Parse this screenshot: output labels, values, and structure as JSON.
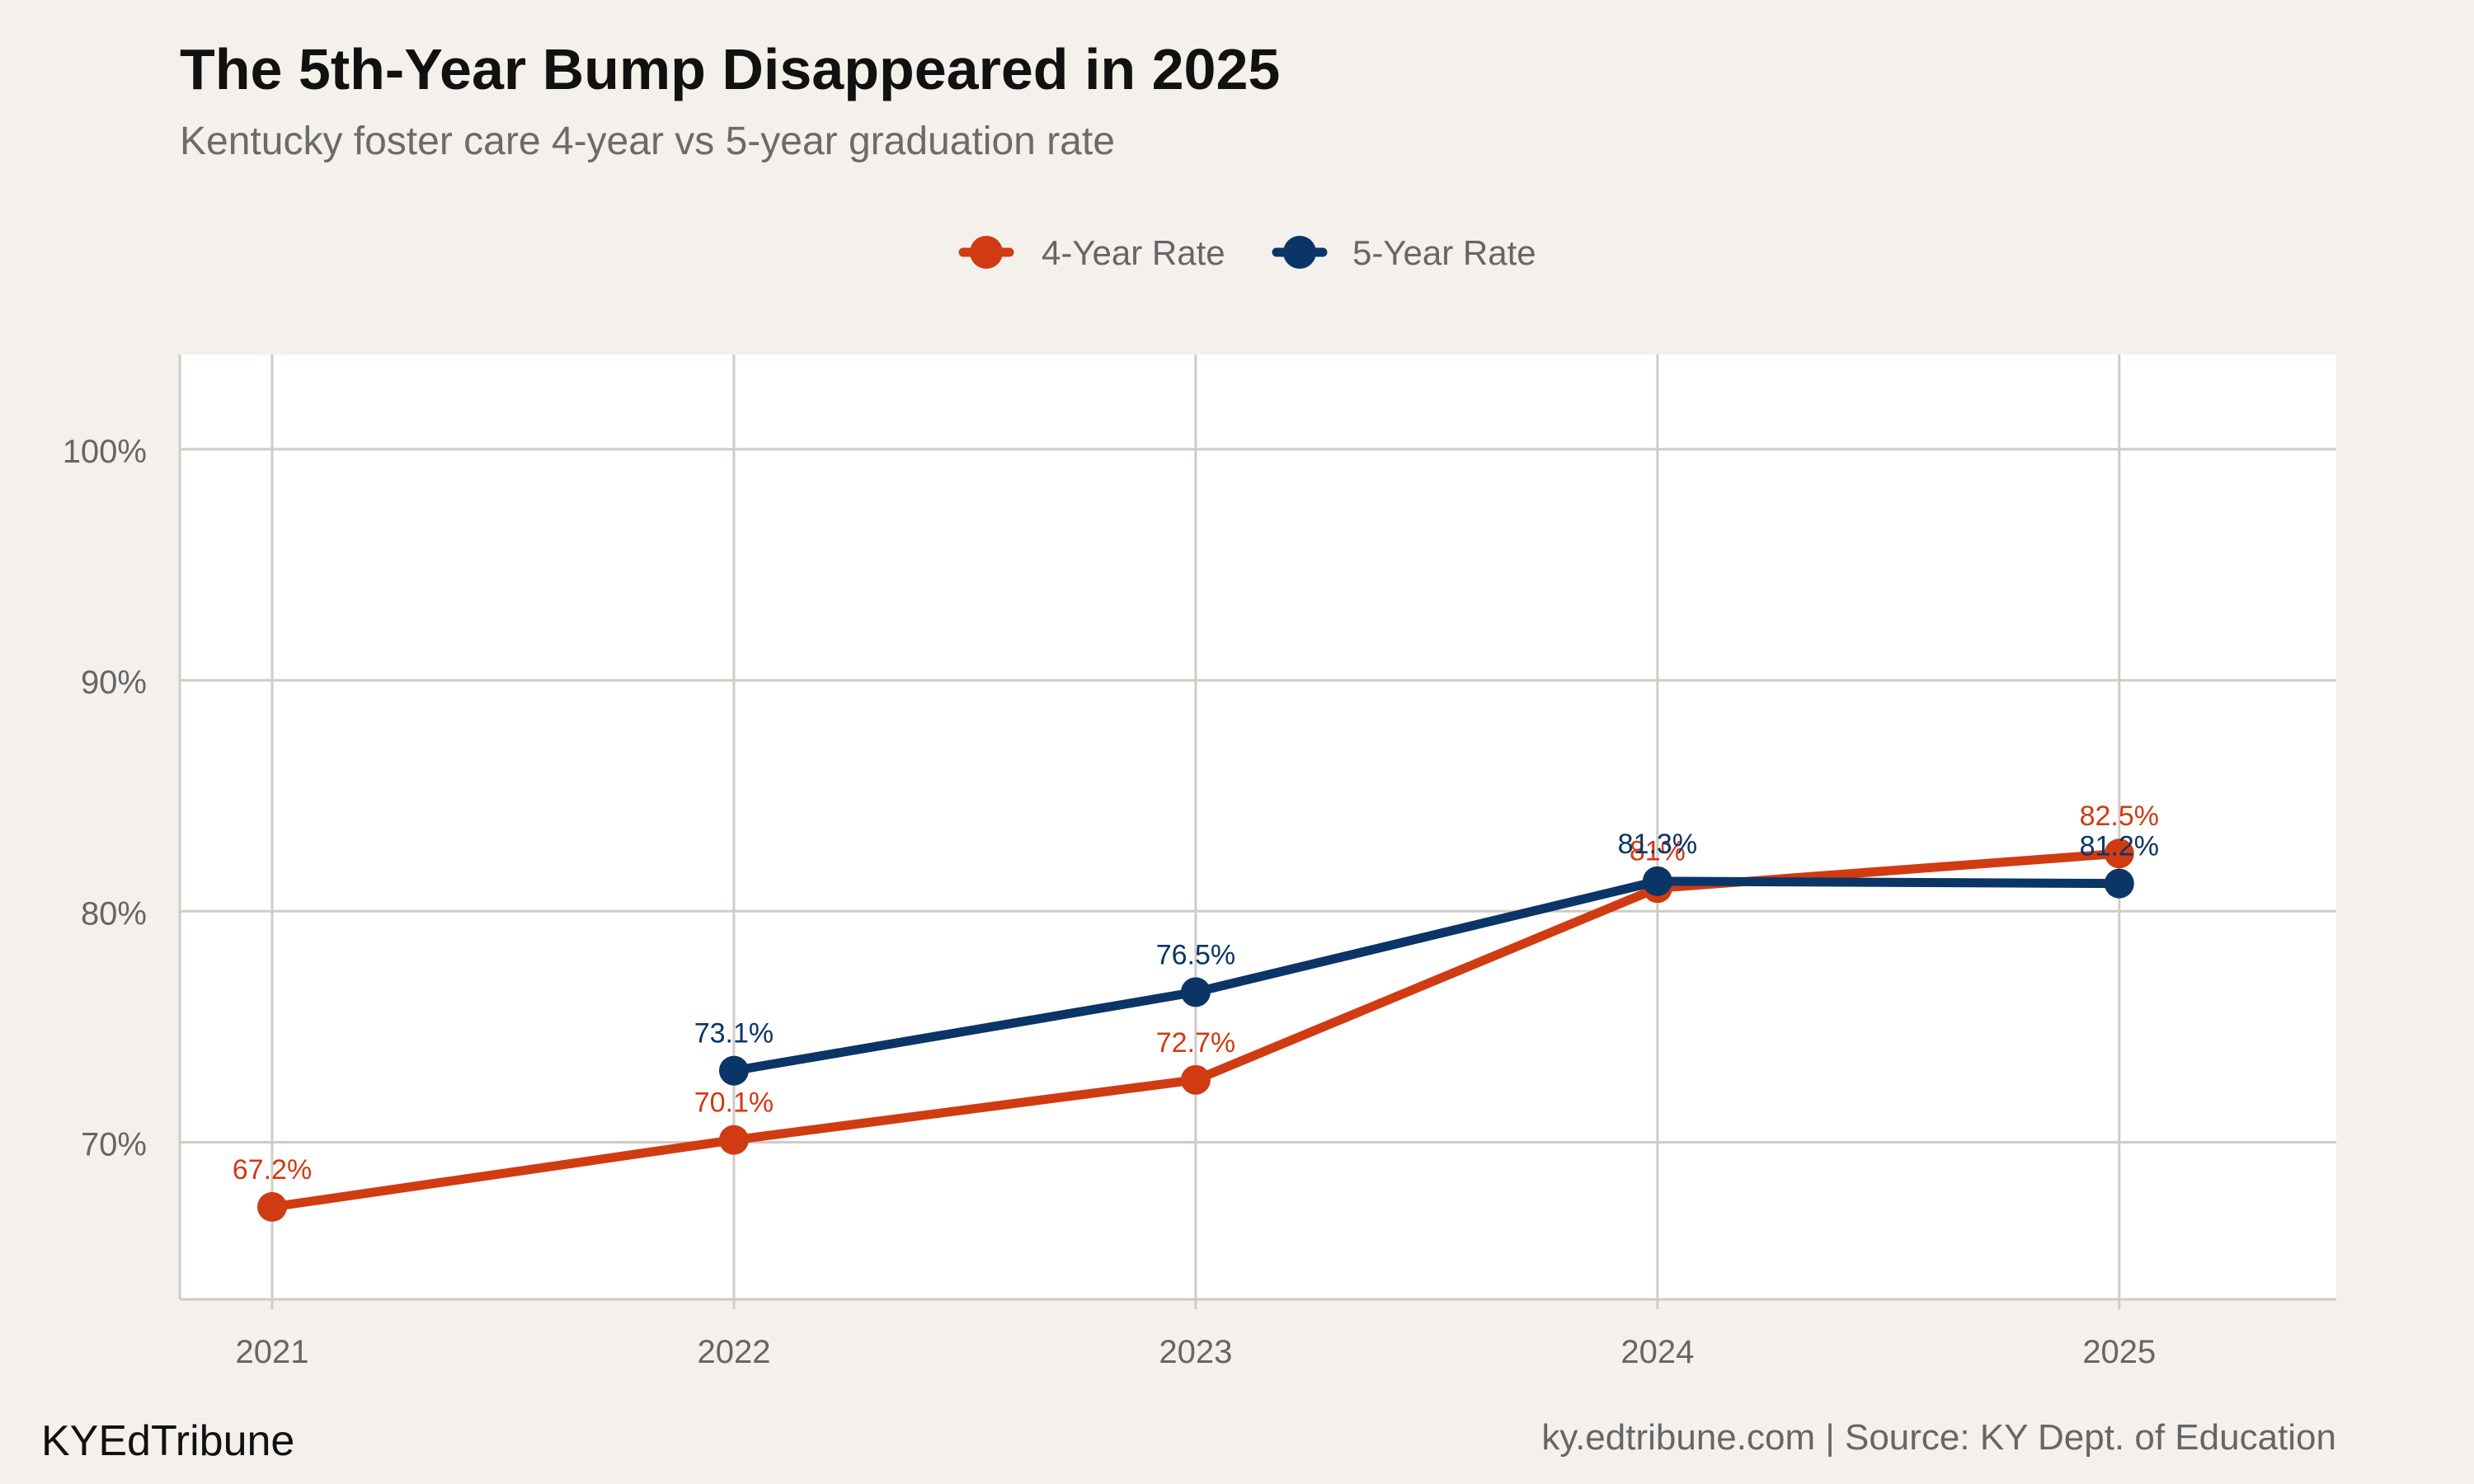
{
  "header": {
    "title": "The 5th-Year Bump Disappeared in 2025",
    "subtitle": "Kentucky foster care 4-year vs 5-year graduation rate"
  },
  "footer": {
    "brand": "KYEdTribune",
    "source": "ky.edtribune.com | Source: KY Dept. of Education"
  },
  "colors": {
    "background": "#f4f1ec",
    "panel": "#ffffff",
    "grid": "#cfccc6",
    "four_year": "#d13b12",
    "five_year": "#0b3566"
  },
  "chart_data": {
    "type": "line",
    "title": "The 5th-Year Bump Disappeared in 2025",
    "subtitle": "Kentucky foster care 4-year vs 5-year graduation rate",
    "xlabel": "",
    "ylabel": "",
    "categories": [
      "2021",
      "2022",
      "2023",
      "2024",
      "2025"
    ],
    "x_range": [
      2020.8,
      2025.47
    ],
    "ylim": [
      63.2,
      104.1
    ],
    "y_ticks": [
      70,
      80,
      90,
      100
    ],
    "y_tick_labels": [
      "70%",
      "80%",
      "90%",
      "100%"
    ],
    "grid": true,
    "legend_position": "top-center",
    "series": [
      {
        "name": "4-Year Rate",
        "color": "#d13b12",
        "values": [
          67.2,
          70.1,
          72.7,
          81.0,
          82.5
        ],
        "labels": [
          "67.2%",
          "70.1%",
          "72.7%",
          "81%",
          "82.5%"
        ]
      },
      {
        "name": "5-Year Rate",
        "color": "#0b3566",
        "values": [
          null,
          73.1,
          76.5,
          81.3,
          81.2
        ],
        "labels": [
          null,
          "73.1%",
          "76.5%",
          "81.3%",
          "81.2%"
        ]
      }
    ]
  }
}
